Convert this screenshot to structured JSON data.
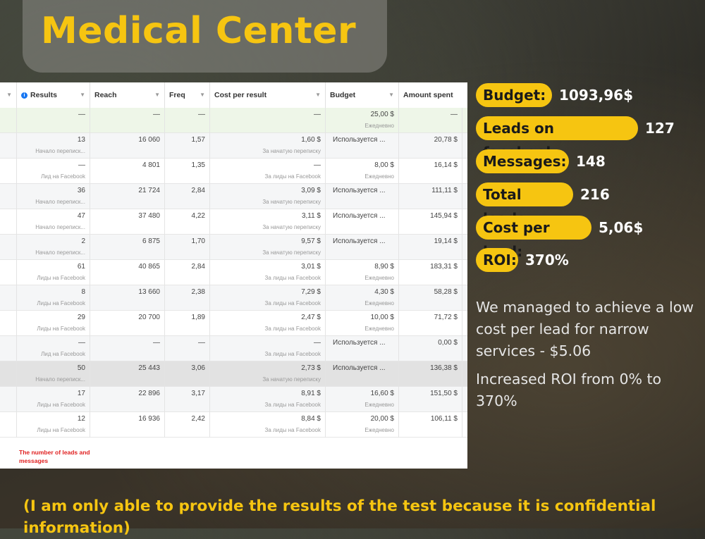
{
  "title": "Medical Center",
  "table": {
    "headers": [
      "Results",
      "Reach",
      "Freq",
      "Cost per result",
      "Budget",
      "Amount spent"
    ],
    "rows": [
      {
        "results": "—",
        "results_sub": "",
        "reach": "—",
        "freq": "—",
        "cpr": "—",
        "cpr_sub": "",
        "budget": "25,00 $",
        "budget_sub": "Ежедневно",
        "spent": "—"
      },
      {
        "results": "13",
        "results_sub": "Начало переписк...",
        "reach": "16 060",
        "freq": "1,57",
        "cpr": "1,60 $",
        "cpr_sub": "За начатую переписку",
        "budget": "Используется ...",
        "budget_sub": "",
        "spent": "20,78 $"
      },
      {
        "results": "—",
        "results_sub": "Лид на Facebook",
        "reach": "4 801",
        "freq": "1,35",
        "cpr": "—",
        "cpr_sub": "За лиды на Facebook",
        "budget": "8,00 $",
        "budget_sub": "Ежедневно",
        "spent": "16,14 $"
      },
      {
        "results": "36",
        "results_sub": "Начало переписк...",
        "reach": "21 724",
        "freq": "2,84",
        "cpr": "3,09 $",
        "cpr_sub": "За начатую переписку",
        "budget": "Используется ...",
        "budget_sub": "",
        "spent": "111,11 $"
      },
      {
        "results": "47",
        "results_sub": "Начало переписк...",
        "reach": "37 480",
        "freq": "4,22",
        "cpr": "3,11 $",
        "cpr_sub": "За начатую переписку",
        "budget": "Используется ...",
        "budget_sub": "",
        "spent": "145,94 $"
      },
      {
        "results": "2",
        "results_sub": "Начало переписк...",
        "reach": "6 875",
        "freq": "1,70",
        "cpr": "9,57 $",
        "cpr_sub": "За начатую переписку",
        "budget": "Используется ...",
        "budget_sub": "",
        "spent": "19,14 $"
      },
      {
        "results": "61",
        "results_sub": "Лиды на Facebook",
        "reach": "40 865",
        "freq": "2,84",
        "cpr": "3,01 $",
        "cpr_sub": "За лиды на Facebook",
        "budget": "8,90 $",
        "budget_sub": "Ежедневно",
        "spent": "183,31 $"
      },
      {
        "results": "8",
        "results_sub": "Лиды на Facebook",
        "reach": "13 660",
        "freq": "2,38",
        "cpr": "7,29 $",
        "cpr_sub": "За лиды на Facebook",
        "budget": "4,30 $",
        "budget_sub": "Ежедневно",
        "spent": "58,28 $"
      },
      {
        "results": "29",
        "results_sub": "Лиды на Facebook",
        "reach": "20 700",
        "freq": "1,89",
        "cpr": "2,47 $",
        "cpr_sub": "За лиды на Facebook",
        "budget": "10,00 $",
        "budget_sub": "Ежедневно",
        "spent": "71,72 $"
      },
      {
        "results": "—",
        "results_sub": "Лид на Facebook",
        "reach": "—",
        "freq": "—",
        "cpr": "—",
        "cpr_sub": "За лиды на Facebook",
        "budget": "Используется ...",
        "budget_sub": "",
        "spent": "0,00 $"
      },
      {
        "results": "50",
        "results_sub": "Начало переписк...",
        "reach": "25 443",
        "freq": "3,06",
        "cpr": "2,73 $",
        "cpr_sub": "За начатую переписку",
        "budget": "Используется ...",
        "budget_sub": "",
        "spent": "136,38 $"
      },
      {
        "results": "17",
        "results_sub": "Лиды на Facebook",
        "reach": "22 896",
        "freq": "3,17",
        "cpr": "8,91 $",
        "cpr_sub": "За лиды на Facebook",
        "budget": "16,60 $",
        "budget_sub": "Ежедневно",
        "spent": "151,50 $"
      },
      {
        "results": "12",
        "results_sub": "Лиды на Facebook",
        "reach": "16 936",
        "freq": "2,42",
        "cpr": "8,84 $",
        "cpr_sub": "За лиды на Facebook",
        "budget": "20,00 $",
        "budget_sub": "Ежедневно",
        "spent": "106,11 $"
      }
    ],
    "note": "The number of leads and messages"
  },
  "stats": [
    {
      "label": "Budget:",
      "value": "1093,96$"
    },
    {
      "label": "Leads on facebook:",
      "value": "127"
    },
    {
      "label": "Messages:",
      "value": "148"
    },
    {
      "label": "Total leads:",
      "value": "216"
    },
    {
      "label": "Cost per lead:",
      "value": "5,06$"
    },
    {
      "label": "ROI:",
      "value": "370%"
    }
  ],
  "paragraphs": [
    "We managed to achieve a low cost per lead for narrow services - $5.06",
    "Increased ROI from 0% to 370%"
  ],
  "footer": "(I am only able to provide the results of the test because it is confidential information)",
  "colors": {
    "accent": "#f6c511",
    "note_red": "#e02020",
    "fb_blue": "#1877f2"
  }
}
